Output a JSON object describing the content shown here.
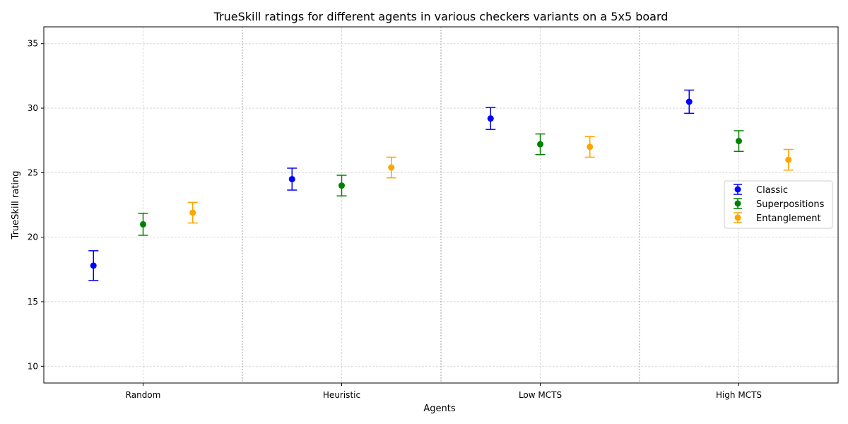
{
  "chart_data": {
    "type": "scatter",
    "title": "TrueSkill ratings for different agents in various checkers variants on a 5x5 board",
    "xlabel": "Agents",
    "ylabel": "TrueSkill rating",
    "categories": [
      "Random",
      "Heuristic",
      "Low MCTS",
      "High MCTS"
    ],
    "ylim": [
      8.7,
      36.3
    ],
    "yticks": [
      10,
      15,
      20,
      25,
      30,
      35
    ],
    "grid": true,
    "legend_position": "center-right",
    "error_bars": true,
    "series": [
      {
        "name": "Classic",
        "color": "#0000ff",
        "values": [
          17.8,
          24.5,
          29.2,
          30.5
        ],
        "errors": [
          1.15,
          0.85,
          0.85,
          0.9
        ]
      },
      {
        "name": "Superpositions",
        "color": "#008000",
        "values": [
          21.0,
          24.0,
          27.2,
          27.45
        ],
        "errors": [
          0.85,
          0.8,
          0.8,
          0.8
        ]
      },
      {
        "name": "Entanglement",
        "color": "#ffa500",
        "values": [
          21.9,
          25.4,
          27.0,
          26.0
        ],
        "errors": [
          0.8,
          0.8,
          0.8,
          0.8
        ]
      }
    ]
  }
}
